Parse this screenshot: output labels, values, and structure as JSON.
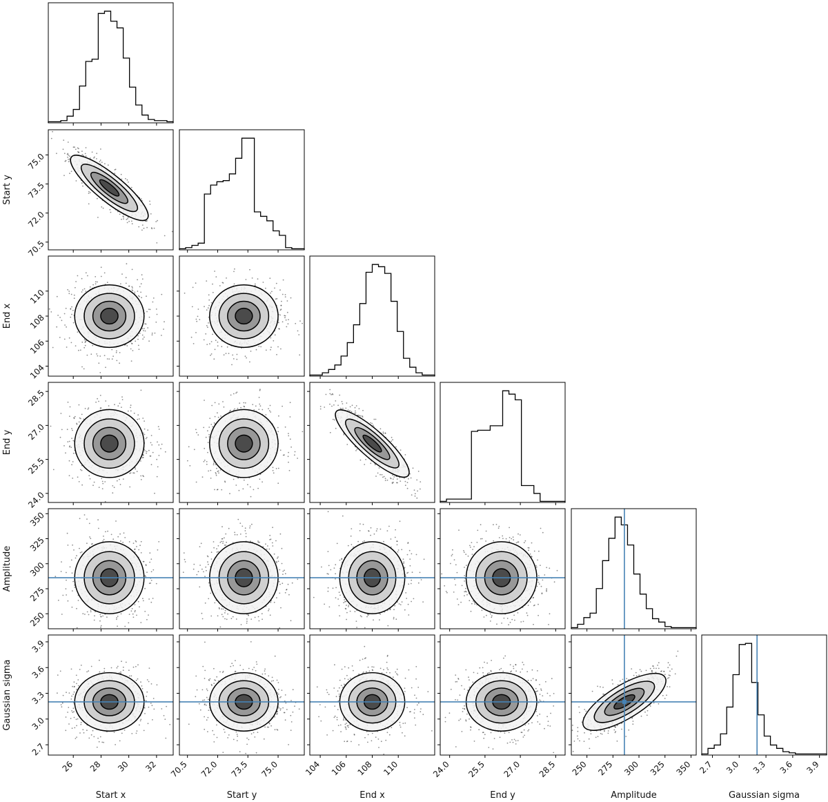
{
  "chart_data": {
    "type": "scatter",
    "subtype": "corner-plot",
    "parameters": [
      {
        "key": "start_x",
        "label": "Start x",
        "range": [
          24.2,
          33.2
        ],
        "ticks": [
          "26",
          "28",
          "30",
          "32"
        ],
        "tick_values": [
          26,
          28,
          30,
          32
        ],
        "mean": 28.6,
        "sd": 1.25
      },
      {
        "key": "start_y",
        "label": "Start y",
        "range": [
          70.1,
          76.3
        ],
        "ticks": [
          "70.5",
          "72.0",
          "73.5",
          "75.0"
        ],
        "tick_values": [
          70.5,
          72.0,
          73.5,
          75.0
        ],
        "mean": 73.3,
        "sd": 0.85
      },
      {
        "key": "end_x",
        "label": "End x",
        "range": [
          103.2,
          112.8
        ],
        "ticks": [
          "104",
          "106",
          "108",
          "110"
        ],
        "tick_values": [
          104,
          106,
          108,
          110
        ],
        "mean": 108.0,
        "sd": 1.25
      },
      {
        "key": "end_y",
        "label": "End y",
        "range": [
          23.6,
          28.9
        ],
        "ticks": [
          "24.0",
          "25.5",
          "27.0",
          "28.5"
        ],
        "tick_values": [
          24.0,
          25.5,
          27.0,
          28.5
        ],
        "mean": 26.2,
        "sd": 0.75
      },
      {
        "key": "amplitude",
        "label": "Amplitude",
        "range": [
          235,
          355
        ],
        "ticks": [
          "250",
          "275",
          "300",
          "325",
          "350"
        ],
        "tick_values": [
          250,
          275,
          300,
          325,
          350
        ],
        "mean": 286,
        "sd": 18
      },
      {
        "key": "gaussian_sigma",
        "label": "Gaussian sigma",
        "range": [
          2.58,
          3.98
        ],
        "ticks": [
          "2.7",
          "3.0",
          "3.3",
          "3.6",
          "3.9"
        ],
        "tick_values": [
          2.7,
          3.0,
          3.3,
          3.6,
          3.9
        ],
        "mean": 3.2,
        "sd": 0.17
      }
    ],
    "truths": {
      "amplitude": 286,
      "gaussian_sigma": 3.2
    },
    "histograms": [
      {
        "key": "start_x",
        "counts": [
          1,
          1,
          2,
          6,
          12,
          33,
          55,
          57,
          98,
          100,
          91,
          85,
          58,
          32,
          16,
          7,
          3,
          2,
          2,
          1
        ]
      },
      {
        "key": "start_y",
        "counts": [
          1,
          2,
          4,
          6,
          50,
          58,
          61,
          62,
          68,
          82,
          100,
          100,
          34,
          30,
          26,
          17,
          13,
          2,
          1,
          1
        ]
      },
      {
        "key": "end_x",
        "counts": [
          1,
          1,
          3,
          6,
          10,
          18,
          30,
          46,
          65,
          93,
          100,
          98,
          92,
          67,
          40,
          16,
          8,
          3,
          1,
          1
        ]
      },
      {
        "key": "end_y",
        "counts": [
          1,
          3,
          3,
          3,
          3,
          63,
          64,
          64,
          68,
          68,
          99,
          96,
          91,
          15,
          15,
          8,
          1,
          1,
          1,
          1
        ]
      },
      {
        "key": "amplitude",
        "counts": [
          1,
          4,
          10,
          14,
          36,
          61,
          81,
          100,
          93,
          75,
          49,
          31,
          18,
          9,
          6,
          2,
          1,
          1,
          1,
          1
        ]
      },
      {
        "key": "gaussian_sigma",
        "counts": [
          1,
          6,
          9,
          19,
          43,
          72,
          99,
          100,
          65,
          36,
          17,
          9,
          6,
          3,
          2,
          1,
          1,
          1,
          1,
          1
        ]
      }
    ],
    "correlations": [
      {
        "row": "start_y",
        "col": "start_x",
        "r": -0.86
      },
      {
        "row": "end_y",
        "col": "end_x",
        "r": -0.86
      },
      {
        "row": "gaussian_sigma",
        "col": "amplitude",
        "r": 0.78
      }
    ],
    "truth_color": "#4682b4",
    "hist_color": "#000000",
    "grid": false,
    "legend": "none"
  }
}
